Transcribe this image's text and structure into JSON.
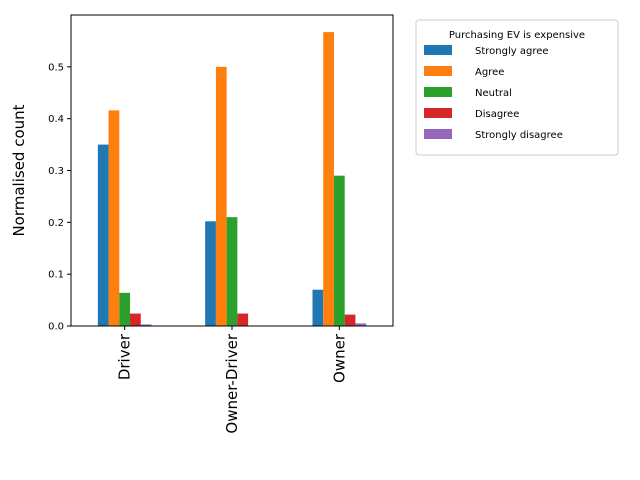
{
  "chart_data": {
    "type": "bar",
    "title": "",
    "xlabel": "",
    "ylabel": "Normalised count",
    "ylim": [
      0,
      0.6
    ],
    "yticks": [
      0.0,
      0.1,
      0.2,
      0.3,
      0.4,
      0.5
    ],
    "ytick_labels": [
      "0.0",
      "0.1",
      "0.2",
      "0.3",
      "0.4",
      "0.5"
    ],
    "categories": [
      "Driver",
      "Owner-Driver",
      "Owner"
    ],
    "legend": {
      "title": "Purchasing EV is expensive",
      "placement": "outside-right-top"
    },
    "grid": false,
    "series": [
      {
        "name": "Strongly agree",
        "color": "#1f77b4",
        "values": [
          0.35,
          0.202,
          0.07
        ]
      },
      {
        "name": "Agree",
        "color": "#ff7f0e",
        "values": [
          0.416,
          0.5,
          0.567
        ]
      },
      {
        "name": "Neutral",
        "color": "#2ca02c",
        "values": [
          0.064,
          0.21,
          0.29
        ]
      },
      {
        "name": "Disagree",
        "color": "#d62728",
        "values": [
          0.024,
          0.024,
          0.022
        ]
      },
      {
        "name": "Strongly disagree",
        "color": "#9467bd",
        "values": [
          0.003,
          0.0,
          0.005
        ]
      }
    ]
  }
}
